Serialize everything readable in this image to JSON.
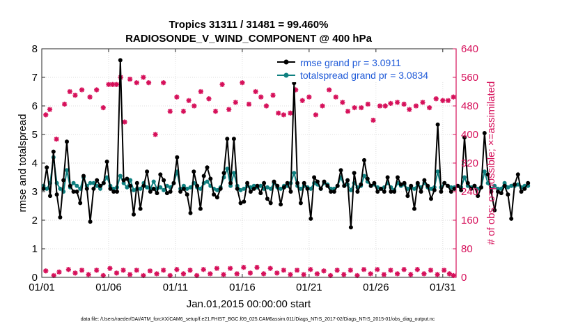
{
  "chart_data": {
    "type": "line",
    "title": "Tropics 31311 / 31481 = 99.460%",
    "subtitle": "RADIOSONDE_V_WIND_COMPONENT @ 400 hPa",
    "xlabel": "Jan.01,2015 00:00:00 start",
    "ylabel_left": "rmse and totalspread",
    "ylabel_right": "# of obs: o=possible; ×=assimilated",
    "footer": "data file: /Users/raeder/DAI/ATM_forcXX/CAM6_setup/f.e21.FHIST_BGC.f09_025.CAM6assim.011/Diags_NTrS_2017-02/Diags_NTrS_2015-01/obs_diag_output.nc",
    "x_tick_labels": [
      "01/01",
      "01/06",
      "01/11",
      "01/16",
      "01/21",
      "01/26",
      "01/31"
    ],
    "x_tick_days": [
      0,
      5,
      10,
      15,
      20,
      25,
      30
    ],
    "xlim": [
      0,
      31
    ],
    "y_left_ticks": [
      "0",
      "1",
      "2",
      "3",
      "4",
      "5",
      "6",
      "7",
      "8"
    ],
    "ylim_left": [
      0,
      8
    ],
    "y_right_ticks": [
      "0",
      "80",
      "160",
      "240",
      "320",
      "400",
      "480",
      "560",
      "640"
    ],
    "ylim_right": [
      0,
      640
    ],
    "legend": [
      {
        "label": "rmse grand pr = 3.0911",
        "color": "#000000"
      },
      {
        "label": "totalspread grand pr = 3.0834",
        "color": "#0f8080"
      }
    ],
    "colors": {
      "rmse": "#000000",
      "spread": "#0f8080",
      "obs": "#d6105a",
      "axis_right": "#d6105a",
      "legend_text": "#1f5ad8"
    },
    "step_days": 0.25,
    "series": [
      {
        "name": "rmse",
        "values": [
          3.1,
          3.85,
          2.85,
          4.4,
          2.9,
          2.1,
          3.4,
          4.75,
          3.2,
          3.0,
          3.0,
          2.6,
          3.55,
          3.1,
          1.95,
          3.1,
          3.4,
          3.2,
          3.3,
          4.05,
          3.1,
          3.0,
          3.0,
          7.6,
          3.4,
          3.45,
          3.2,
          2.2,
          3.3,
          2.4,
          3.2,
          3.7,
          3.0,
          3.1,
          2.95,
          3.6,
          3.4,
          2.95,
          3.0,
          3.3,
          4.2,
          3.0,
          3.1,
          2.9,
          2.25,
          3.7,
          3.2,
          2.4,
          3.55,
          3.85,
          3.45,
          2.9,
          2.8,
          3.1,
          3.65,
          4.85,
          3.3,
          4.85,
          3.1,
          2.6,
          2.65,
          3.3,
          3.0,
          3.1,
          3.2,
          2.95,
          3.3,
          2.75,
          2.6,
          3.35,
          3.2,
          2.55,
          3.15,
          3.3,
          3.0,
          6.8,
          3.3,
          2.6,
          3.3,
          3.1,
          2.05,
          3.5,
          3.35,
          3.1,
          3.35,
          3.2,
          3.0,
          3.0,
          3.2,
          3.75,
          3.2,
          3.4,
          1.75,
          3.65,
          3.0,
          3.25,
          4.1,
          3.45,
          3.2,
          3.3,
          3.0,
          3.1,
          3.0,
          3.5,
          3.0,
          3.0,
          3.5,
          3.25,
          3.3,
          2.85,
          3.2,
          2.4,
          3.3,
          3.0,
          3.4,
          3.2,
          2.75,
          3.05,
          5.35,
          3.0,
          3.3,
          3.2,
          3.0,
          3.1,
          3.2,
          3.05,
          4.9,
          3.3,
          3.1,
          3.2,
          2.85,
          3.15,
          5.05,
          3.6,
          3.0,
          2.35,
          3.0,
          2.95,
          3.2,
          2.9,
          2.05,
          3.25,
          3.6,
          3.0,
          3.1,
          3.3
        ]
      },
      {
        "name": "totalspread",
        "values": [
          3.2,
          3.1,
          3.3,
          4.2,
          3.3,
          3.1,
          3.0,
          3.75,
          3.15,
          3.3,
          3.2,
          3.1,
          3.5,
          3.2,
          3.3,
          3.3,
          3.2,
          3.1,
          3.3,
          3.5,
          3.2,
          3.1,
          3.15,
          3.55,
          3.3,
          3.15,
          3.4,
          3.05,
          3.1,
          3.1,
          3.3,
          3.15,
          3.1,
          3.35,
          3.1,
          3.15,
          3.05,
          3.2,
          3.15,
          3.3,
          3.7,
          3.1,
          3.2,
          3.1,
          3.15,
          3.3,
          3.15,
          3.1,
          3.3,
          3.35,
          3.2,
          3.1,
          3.05,
          3.15,
          3.5,
          3.8,
          3.2,
          3.65,
          3.2,
          3.05,
          3.1,
          3.2,
          3.15,
          3.2,
          3.15,
          3.2,
          3.1,
          3.15,
          3.1,
          3.3,
          3.15,
          3.1,
          3.2,
          3.2,
          3.3,
          3.65,
          3.2,
          3.1,
          3.2,
          3.15,
          3.1,
          3.3,
          3.25,
          3.1,
          3.3,
          3.25,
          3.1,
          3.1,
          3.2,
          3.5,
          3.2,
          3.25,
          3.05,
          3.3,
          3.15,
          3.2,
          3.55,
          3.35,
          3.2,
          3.25,
          3.15,
          3.1,
          3.15,
          3.3,
          3.15,
          3.05,
          3.3,
          3.2,
          3.25,
          3.1,
          3.15,
          3.1,
          3.25,
          3.15,
          3.3,
          3.15,
          3.1,
          3.15,
          3.7,
          3.15,
          3.3,
          3.2,
          3.15,
          3.15,
          3.2,
          3.15,
          3.5,
          3.2,
          3.15,
          3.2,
          3.1,
          3.15,
          3.7,
          3.3,
          3.1,
          3.2,
          3.1,
          3.1,
          3.3,
          3.15,
          3.2,
          3.2,
          3.25,
          3.15,
          3.2,
          3.2
        ]
      }
    ],
    "obs_possible": [
      {
        "day": 0.3,
        "value": 455
      },
      {
        "day": 0.6,
        "value": 470
      },
      {
        "day": 1.1,
        "value": 387
      },
      {
        "day": 1.7,
        "value": 485
      },
      {
        "day": 2.1,
        "value": 520
      },
      {
        "day": 2.5,
        "value": 510
      },
      {
        "day": 3.0,
        "value": 525
      },
      {
        "day": 3.6,
        "value": 505
      },
      {
        "day": 4.1,
        "value": 525
      },
      {
        "day": 4.6,
        "value": 475
      },
      {
        "day": 5.0,
        "value": 540
      },
      {
        "day": 5.3,
        "value": 540
      },
      {
        "day": 5.6,
        "value": 540
      },
      {
        "day": 5.9,
        "value": 560
      },
      {
        "day": 6.2,
        "value": 435
      },
      {
        "day": 6.6,
        "value": 555
      },
      {
        "day": 7.1,
        "value": 545
      },
      {
        "day": 7.6,
        "value": 560
      },
      {
        "day": 8.0,
        "value": 545
      },
      {
        "day": 8.5,
        "value": 400
      },
      {
        "day": 9.1,
        "value": 545
      },
      {
        "day": 9.6,
        "value": 465
      },
      {
        "day": 10.1,
        "value": 505
      },
      {
        "day": 10.6,
        "value": 465
      },
      {
        "day": 11.0,
        "value": 495
      },
      {
        "day": 11.4,
        "value": 480
      },
      {
        "day": 11.9,
        "value": 520
      },
      {
        "day": 12.5,
        "value": 500
      },
      {
        "day": 13.0,
        "value": 465
      },
      {
        "day": 13.5,
        "value": 540
      },
      {
        "day": 14.0,
        "value": 470
      },
      {
        "day": 14.5,
        "value": 490
      },
      {
        "day": 15.0,
        "value": 545
      },
      {
        "day": 15.5,
        "value": 485
      },
      {
        "day": 16.0,
        "value": 520
      },
      {
        "day": 16.4,
        "value": 505
      },
      {
        "day": 16.8,
        "value": 480
      },
      {
        "day": 17.3,
        "value": 510
      },
      {
        "day": 17.7,
        "value": 460
      },
      {
        "day": 18.1,
        "value": 455
      },
      {
        "day": 18.6,
        "value": 460
      },
      {
        "day": 19.0,
        "value": 525
      },
      {
        "day": 19.5,
        "value": 495
      },
      {
        "day": 20.0,
        "value": 505
      },
      {
        "day": 20.5,
        "value": 455
      },
      {
        "day": 21.0,
        "value": 480
      },
      {
        "day": 21.5,
        "value": 525
      },
      {
        "day": 22.0,
        "value": 505
      },
      {
        "day": 22.5,
        "value": 490
      },
      {
        "day": 22.9,
        "value": 465
      },
      {
        "day": 23.4,
        "value": 475
      },
      {
        "day": 23.9,
        "value": 475
      },
      {
        "day": 24.4,
        "value": 485
      },
      {
        "day": 24.8,
        "value": 440
      },
      {
        "day": 25.3,
        "value": 480
      },
      {
        "day": 25.7,
        "value": 480
      },
      {
        "day": 26.1,
        "value": 487
      },
      {
        "day": 26.6,
        "value": 490
      },
      {
        "day": 27.1,
        "value": 485
      },
      {
        "day": 27.5,
        "value": 470
      },
      {
        "day": 28.0,
        "value": 480
      },
      {
        "day": 28.5,
        "value": 490
      },
      {
        "day": 29.0,
        "value": 475
      },
      {
        "day": 29.5,
        "value": 500
      },
      {
        "day": 30.0,
        "value": 495
      },
      {
        "day": 30.4,
        "value": 495
      },
      {
        "day": 30.8,
        "value": 505
      }
    ],
    "obs_assimilated": [
      {
        "day": 0.3,
        "value": 18
      },
      {
        "day": 0.9,
        "value": 5
      },
      {
        "day": 1.3,
        "value": 15
      },
      {
        "day": 2.0,
        "value": 22
      },
      {
        "day": 2.5,
        "value": 12
      },
      {
        "day": 3.0,
        "value": 20
      },
      {
        "day": 3.5,
        "value": 8
      },
      {
        "day": 4.1,
        "value": 20
      },
      {
        "day": 4.6,
        "value": 5
      },
      {
        "day": 5.1,
        "value": 25
      },
      {
        "day": 5.6,
        "value": 12
      },
      {
        "day": 6.1,
        "value": 20
      },
      {
        "day": 6.6,
        "value": 8
      },
      {
        "day": 7.1,
        "value": 20
      },
      {
        "day": 7.6,
        "value": 5
      },
      {
        "day": 8.1,
        "value": 18
      },
      {
        "day": 8.6,
        "value": 10
      },
      {
        "day": 9.1,
        "value": 20
      },
      {
        "day": 9.6,
        "value": 5
      },
      {
        "day": 10.1,
        "value": 22
      },
      {
        "day": 10.6,
        "value": 10
      },
      {
        "day": 11.1,
        "value": 20
      },
      {
        "day": 11.6,
        "value": 5
      },
      {
        "day": 12.1,
        "value": 22
      },
      {
        "day": 12.6,
        "value": 10
      },
      {
        "day": 13.1,
        "value": 25
      },
      {
        "day": 13.6,
        "value": 8
      },
      {
        "day": 14.1,
        "value": 25
      },
      {
        "day": 14.6,
        "value": 10
      },
      {
        "day": 15.1,
        "value": 28
      },
      {
        "day": 15.6,
        "value": 12
      },
      {
        "day": 16.1,
        "value": 28
      },
      {
        "day": 16.6,
        "value": 10
      },
      {
        "day": 17.1,
        "value": 25
      },
      {
        "day": 17.6,
        "value": 12
      },
      {
        "day": 18.1,
        "value": 20
      },
      {
        "day": 18.6,
        "value": 8
      },
      {
        "day": 19.1,
        "value": 20
      },
      {
        "day": 19.6,
        "value": 8
      },
      {
        "day": 20.1,
        "value": 22
      },
      {
        "day": 20.6,
        "value": 10
      },
      {
        "day": 21.1,
        "value": 18
      },
      {
        "day": 21.6,
        "value": 5
      },
      {
        "day": 22.1,
        "value": 20
      },
      {
        "day": 22.6,
        "value": 8
      },
      {
        "day": 23.1,
        "value": 20
      },
      {
        "day": 23.6,
        "value": 5
      },
      {
        "day": 24.1,
        "value": 22
      },
      {
        "day": 24.6,
        "value": 10
      },
      {
        "day": 25.1,
        "value": 22
      },
      {
        "day": 25.6,
        "value": 8
      },
      {
        "day": 26.1,
        "value": 20
      },
      {
        "day": 26.6,
        "value": 10
      },
      {
        "day": 27.1,
        "value": 22
      },
      {
        "day": 27.6,
        "value": 8
      },
      {
        "day": 28.1,
        "value": 22
      },
      {
        "day": 28.6,
        "value": 10
      },
      {
        "day": 29.1,
        "value": 20
      },
      {
        "day": 29.6,
        "value": 8
      },
      {
        "day": 30.1,
        "value": 20
      },
      {
        "day": 30.5,
        "value": 10
      },
      {
        "day": 30.8,
        "value": 5
      }
    ]
  }
}
